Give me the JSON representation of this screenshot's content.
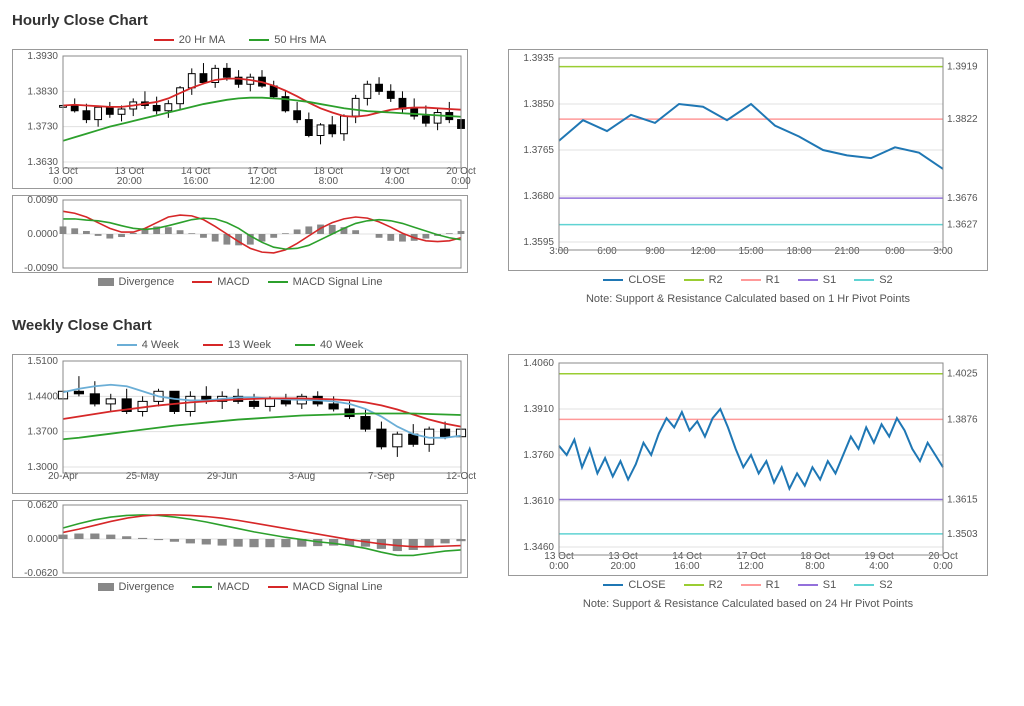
{
  "hourly": {
    "title": "Hourly Close Chart",
    "price": {
      "yticks": [
        "1.3930",
        "1.3830",
        "1.3730",
        "1.3630"
      ],
      "ylim": [
        1.363,
        1.393
      ],
      "xticks": [
        "13 Oct\n0:00",
        "13 Oct\n20:00",
        "14 Oct\n16:00",
        "17 Oct\n12:00",
        "18 Oct\n8:00",
        "19 Oct\n4:00",
        "20 Oct\n0:00"
      ],
      "legend": [
        {
          "label": "20 Hr MA",
          "color": "#d62728"
        },
        {
          "label": "50 Hrs MA",
          "color": "#2ca02c"
        }
      ],
      "ma20_color": "#d62728",
      "ma50_color": "#2ca02c",
      "candle_up": "#ffffff",
      "candle_down": "#000000",
      "wick": "#000000",
      "candles": [
        [
          1.3785,
          1.38,
          1.376,
          1.379
        ],
        [
          1.379,
          1.381,
          1.377,
          1.3775
        ],
        [
          1.3775,
          1.3795,
          1.374,
          1.375
        ],
        [
          1.375,
          1.379,
          1.373,
          1.3785
        ],
        [
          1.3785,
          1.38,
          1.3755,
          1.3765
        ],
        [
          1.3765,
          1.379,
          1.3745,
          1.378
        ],
        [
          1.378,
          1.381,
          1.376,
          1.38
        ],
        [
          1.38,
          1.383,
          1.378,
          1.379
        ],
        [
          1.379,
          1.3815,
          1.3765,
          1.3775
        ],
        [
          1.3775,
          1.3805,
          1.3755,
          1.3795
        ],
        [
          1.3795,
          1.3845,
          1.378,
          1.384
        ],
        [
          1.384,
          1.3895,
          1.382,
          1.388
        ],
        [
          1.388,
          1.391,
          1.385,
          1.3855
        ],
        [
          1.3855,
          1.3905,
          1.384,
          1.3895
        ],
        [
          1.3895,
          1.391,
          1.386,
          1.387
        ],
        [
          1.387,
          1.389,
          1.384,
          1.385
        ],
        [
          1.385,
          1.388,
          1.383,
          1.387
        ],
        [
          1.387,
          1.389,
          1.384,
          1.3845
        ],
        [
          1.3845,
          1.386,
          1.381,
          1.3815
        ],
        [
          1.3815,
          1.383,
          1.377,
          1.3775
        ],
        [
          1.3775,
          1.38,
          1.374,
          1.375
        ],
        [
          1.375,
          1.377,
          1.37,
          1.3705
        ],
        [
          1.3705,
          1.374,
          1.368,
          1.3735
        ],
        [
          1.3735,
          1.376,
          1.37,
          1.371
        ],
        [
          1.371,
          1.3765,
          1.369,
          1.376
        ],
        [
          1.376,
          1.382,
          1.374,
          1.381
        ],
        [
          1.381,
          1.386,
          1.379,
          1.385
        ],
        [
          1.385,
          1.387,
          1.382,
          1.383
        ],
        [
          1.383,
          1.385,
          1.38,
          1.381
        ],
        [
          1.381,
          1.383,
          1.377,
          1.378
        ],
        [
          1.378,
          1.381,
          1.375,
          1.376
        ],
        [
          1.376,
          1.379,
          1.373,
          1.374
        ],
        [
          1.374,
          1.378,
          1.372,
          1.377
        ],
        [
          1.377,
          1.38,
          1.374,
          1.375
        ],
        [
          1.375,
          1.379,
          1.372,
          1.3725
        ]
      ],
      "ma20": [
        1.379,
        1.3792,
        1.379,
        1.3788,
        1.3786,
        1.3786,
        1.379,
        1.3795,
        1.38,
        1.381,
        1.3825,
        1.384,
        1.3852,
        1.3862,
        1.3866,
        1.3866,
        1.3862,
        1.3856,
        1.3846,
        1.3832,
        1.3816,
        1.3798,
        1.3782,
        1.377,
        1.376,
        1.3758,
        1.3762,
        1.377,
        1.3778,
        1.3782,
        1.3784,
        1.3784,
        1.3782,
        1.378,
        1.3778
      ],
      "ma50": [
        1.369,
        1.37,
        1.371,
        1.372,
        1.373,
        1.3738,
        1.3746,
        1.3754,
        1.3762,
        1.377,
        1.3778,
        1.3786,
        1.3794,
        1.38,
        1.3806,
        1.381,
        1.3812,
        1.3812,
        1.381,
        1.3808,
        1.3804,
        1.38,
        1.3794,
        1.3788,
        1.3782,
        1.3778,
        1.3774,
        1.3772,
        1.377,
        1.3768,
        1.3766,
        1.3764,
        1.3762,
        1.376,
        1.3758
      ]
    },
    "macd": {
      "yticks": [
        "0.0090",
        "0.0000",
        "-0.0090"
      ],
      "ylim": [
        -0.009,
        0.009
      ],
      "legend": [
        {
          "label": "Divergence",
          "type": "bar",
          "color": "#888888"
        },
        {
          "label": "MACD",
          "type": "line",
          "color": "#d62728"
        },
        {
          "label": "MACD Signal Line",
          "type": "line",
          "color": "#2ca02c"
        }
      ],
      "divergence": [
        0.002,
        0.0015,
        0.0008,
        -0.0005,
        -0.0012,
        -0.0008,
        0.0003,
        0.0015,
        0.002,
        0.0018,
        0.001,
        0.0002,
        -0.001,
        -0.002,
        -0.0028,
        -0.003,
        -0.0028,
        -0.002,
        -0.001,
        0.0002,
        0.0012,
        0.002,
        0.0025,
        0.0024,
        0.0018,
        0.001,
        0.0,
        -0.001,
        -0.0018,
        -0.002,
        -0.0018,
        -0.0012,
        -0.0005,
        0.0002,
        0.0008
      ],
      "macd": [
        0.006,
        0.0055,
        0.0045,
        0.003,
        0.0015,
        0.0005,
        0.0005,
        0.0015,
        0.003,
        0.0045,
        0.005,
        0.0048,
        0.0038,
        0.002,
        0.0,
        -0.002,
        -0.0038,
        -0.0048,
        -0.005,
        -0.0042,
        -0.0025,
        -0.0005,
        0.0015,
        0.003,
        0.004,
        0.0045,
        0.0042,
        0.0032,
        0.0018,
        0.0002,
        -0.001,
        -0.0018,
        -0.002,
        -0.0018,
        -0.001
      ],
      "signal": [
        0.004,
        0.004,
        0.0037,
        0.0035,
        0.003,
        0.0022,
        0.0015,
        0.0012,
        0.0015,
        0.0022,
        0.003,
        0.0038,
        0.0042,
        0.004,
        0.003,
        0.0015,
        -0.0005,
        -0.0022,
        -0.0035,
        -0.004,
        -0.0038,
        -0.003,
        -0.0015,
        0.0,
        0.0015,
        0.0028,
        0.0035,
        0.0038,
        0.0035,
        0.0028,
        0.0018,
        0.0008,
        -0.0002,
        -0.001,
        -0.0015
      ],
      "macd_color": "#d62728",
      "signal_color": "#2ca02c",
      "bar_color": "#888888"
    },
    "sr": {
      "yticks": [
        "1.3935",
        "1.3850",
        "1.3765",
        "1.3680",
        "1.3595"
      ],
      "ylim": [
        1.3595,
        1.3935
      ],
      "xticks": [
        "3:00",
        "6:00",
        "9:00",
        "12:00",
        "15:00",
        "18:00",
        "21:00",
        "0:00",
        "3:00"
      ],
      "close_color": "#1f77b4",
      "levels": [
        {
          "name": "R2",
          "value": 1.3919,
          "color": "#9acd32",
          "label": "1.3919"
        },
        {
          "name": "R1",
          "value": 1.3822,
          "color": "#ff9999",
          "label": "1.3822"
        },
        {
          "name": "S1",
          "value": 1.3676,
          "color": "#9370db",
          "label": "1.3676"
        },
        {
          "name": "S2",
          "value": 1.3627,
          "color": "#5fd3d3",
          "label": "1.3627"
        }
      ],
      "close": [
        1.3782,
        1.382,
        1.38,
        1.383,
        1.3815,
        1.385,
        1.3845,
        1.382,
        1.385,
        1.381,
        1.379,
        1.3765,
        1.3755,
        1.375,
        1.377,
        1.376,
        1.373
      ],
      "legend": [
        {
          "label": "CLOSE",
          "color": "#1f77b4"
        },
        {
          "label": "R2",
          "color": "#9acd32"
        },
        {
          "label": "R1",
          "color": "#ff9999"
        },
        {
          "label": "S1",
          "color": "#9370db"
        },
        {
          "label": "S2",
          "color": "#5fd3d3"
        }
      ],
      "note": "Note: Support & Resistance Calculated based on 1 Hr Pivot Points"
    }
  },
  "weekly": {
    "title": "Weekly Close Chart",
    "price": {
      "yticks": [
        "1.5100",
        "1.4400",
        "1.3700",
        "1.3000"
      ],
      "ylim": [
        1.3,
        1.51
      ],
      "xticks": [
        "20-Apr",
        "25-May",
        "29-Jun",
        "3-Aug",
        "7-Sep",
        "12-Oct"
      ],
      "legend": [
        {
          "label": "4 Week",
          "color": "#6baed6"
        },
        {
          "label": "13 Week",
          "color": "#d62728"
        },
        {
          "label": "40 Week",
          "color": "#2ca02c"
        }
      ],
      "ma4_color": "#6baed6",
      "ma13_color": "#d62728",
      "ma40_color": "#2ca02c",
      "candles": [
        [
          1.435,
          1.455,
          1.425,
          1.45
        ],
        [
          1.45,
          1.48,
          1.44,
          1.445
        ],
        [
          1.445,
          1.47,
          1.42,
          1.425
        ],
        [
          1.425,
          1.445,
          1.41,
          1.435
        ],
        [
          1.435,
          1.455,
          1.405,
          1.41
        ],
        [
          1.41,
          1.44,
          1.4,
          1.43
        ],
        [
          1.43,
          1.455,
          1.42,
          1.45
        ],
        [
          1.45,
          1.445,
          1.405,
          1.41
        ],
        [
          1.41,
          1.45,
          1.4,
          1.44
        ],
        [
          1.44,
          1.46,
          1.425,
          1.43
        ],
        [
          1.43,
          1.45,
          1.415,
          1.44
        ],
        [
          1.44,
          1.455,
          1.425,
          1.43
        ],
        [
          1.43,
          1.445,
          1.415,
          1.42
        ],
        [
          1.42,
          1.44,
          1.41,
          1.435
        ],
        [
          1.435,
          1.445,
          1.42,
          1.425
        ],
        [
          1.425,
          1.445,
          1.415,
          1.44
        ],
        [
          1.44,
          1.45,
          1.42,
          1.425
        ],
        [
          1.425,
          1.44,
          1.41,
          1.415
        ],
        [
          1.415,
          1.43,
          1.395,
          1.4
        ],
        [
          1.4,
          1.415,
          1.37,
          1.375
        ],
        [
          1.375,
          1.39,
          1.335,
          1.34
        ],
        [
          1.34,
          1.37,
          1.32,
          1.365
        ],
        [
          1.365,
          1.385,
          1.34,
          1.345
        ],
        [
          1.345,
          1.38,
          1.33,
          1.375
        ],
        [
          1.375,
          1.39,
          1.355,
          1.36
        ],
        [
          1.36,
          1.38,
          1.345,
          1.375
        ]
      ],
      "ma4": [
        1.448,
        1.455,
        1.46,
        1.463,
        1.46,
        1.45,
        1.44,
        1.435,
        1.432,
        1.432,
        1.435,
        1.438,
        1.438,
        1.436,
        1.434,
        1.433,
        1.432,
        1.43,
        1.425,
        1.415,
        1.4,
        1.38,
        1.365,
        1.358,
        1.358,
        1.362
      ],
      "ma13": [
        1.395,
        1.4,
        1.405,
        1.41,
        1.414,
        1.418,
        1.422,
        1.425,
        1.428,
        1.43,
        1.432,
        1.434,
        1.435,
        1.436,
        1.436,
        1.436,
        1.435,
        1.434,
        1.432,
        1.428,
        1.422,
        1.414,
        1.404,
        1.394,
        1.386,
        1.38
      ],
      "ma40": [
        1.355,
        1.358,
        1.362,
        1.366,
        1.37,
        1.374,
        1.378,
        1.382,
        1.385,
        1.388,
        1.391,
        1.394,
        1.396,
        1.398,
        1.4,
        1.402,
        1.403,
        1.404,
        1.405,
        1.406,
        1.406,
        1.406,
        1.406,
        1.405,
        1.404,
        1.403
      ]
    },
    "macd": {
      "yticks": [
        "0.0620",
        "0.0000",
        "-0.0620"
      ],
      "ylim": [
        -0.062,
        0.062
      ],
      "legend": [
        {
          "label": "Divergence",
          "type": "bar",
          "color": "#888888"
        },
        {
          "label": "MACD",
          "type": "line",
          "color": "#2ca02c"
        },
        {
          "label": "MACD Signal Line",
          "type": "line",
          "color": "#d62728"
        }
      ],
      "divergence": [
        0.008,
        0.01,
        0.01,
        0.008,
        0.005,
        0.002,
        -0.002,
        -0.005,
        -0.008,
        -0.01,
        -0.012,
        -0.014,
        -0.015,
        -0.015,
        -0.015,
        -0.014,
        -0.013,
        -0.012,
        -0.012,
        -0.014,
        -0.018,
        -0.022,
        -0.02,
        -0.015,
        -0.008,
        -0.004
      ],
      "macd": [
        0.02,
        0.028,
        0.035,
        0.04,
        0.043,
        0.044,
        0.043,
        0.04,
        0.036,
        0.031,
        0.025,
        0.019,
        0.013,
        0.008,
        0.003,
        -0.001,
        -0.005,
        -0.008,
        -0.012,
        -0.017,
        -0.024,
        -0.03,
        -0.03,
        -0.026,
        -0.022,
        -0.02
      ],
      "signal": [
        0.012,
        0.018,
        0.025,
        0.032,
        0.038,
        0.042,
        0.044,
        0.044,
        0.043,
        0.041,
        0.038,
        0.034,
        0.029,
        0.024,
        0.019,
        0.014,
        0.009,
        0.004,
        -0.001,
        -0.005,
        -0.009,
        -0.012,
        -0.014,
        -0.014,
        -0.013,
        -0.012
      ],
      "macd_color": "#2ca02c",
      "signal_color": "#d62728",
      "bar_color": "#888888"
    },
    "sr": {
      "yticks": [
        "1.4060",
        "1.3910",
        "1.3760",
        "1.3610",
        "1.3460"
      ],
      "ylim": [
        1.346,
        1.406
      ],
      "xticks": [
        "13 Oct\n0:00",
        "13 Oct\n20:00",
        "14 Oct\n16:00",
        "17 Oct\n12:00",
        "18 Oct\n8:00",
        "19 Oct\n4:00",
        "20 Oct\n0:00"
      ],
      "close_color": "#1f77b4",
      "levels": [
        {
          "name": "R2",
          "value": 1.4025,
          "color": "#9acd32",
          "label": "1.4025"
        },
        {
          "name": "R1",
          "value": 1.3876,
          "color": "#ff9999",
          "label": "1.3876"
        },
        {
          "name": "S1",
          "value": 1.3615,
          "color": "#9370db",
          "label": "1.3615"
        },
        {
          "name": "S2",
          "value": 1.3503,
          "color": "#5fd3d3",
          "label": "1.3503"
        }
      ],
      "close": [
        1.379,
        1.376,
        1.381,
        1.372,
        1.378,
        1.37,
        1.375,
        1.369,
        1.374,
        1.368,
        1.373,
        1.38,
        1.376,
        1.383,
        1.388,
        1.385,
        1.39,
        1.384,
        1.387,
        1.382,
        1.388,
        1.391,
        1.385,
        1.378,
        1.372,
        1.376,
        1.37,
        1.374,
        1.367,
        1.372,
        1.365,
        1.37,
        1.366,
        1.372,
        1.368,
        1.374,
        1.37,
        1.376,
        1.382,
        1.378,
        1.385,
        1.38,
        1.386,
        1.382,
        1.388,
        1.384,
        1.378,
        1.374,
        1.38,
        1.376,
        1.372
      ],
      "legend": [
        {
          "label": "CLOSE",
          "color": "#1f77b4"
        },
        {
          "label": "R2",
          "color": "#9acd32"
        },
        {
          "label": "R1",
          "color": "#ff9999"
        },
        {
          "label": "S1",
          "color": "#9370db"
        },
        {
          "label": "S2",
          "color": "#5fd3d3"
        }
      ],
      "note": "Note: Support & Resistance Calculated based on 24 Hr Pivot Points"
    }
  }
}
